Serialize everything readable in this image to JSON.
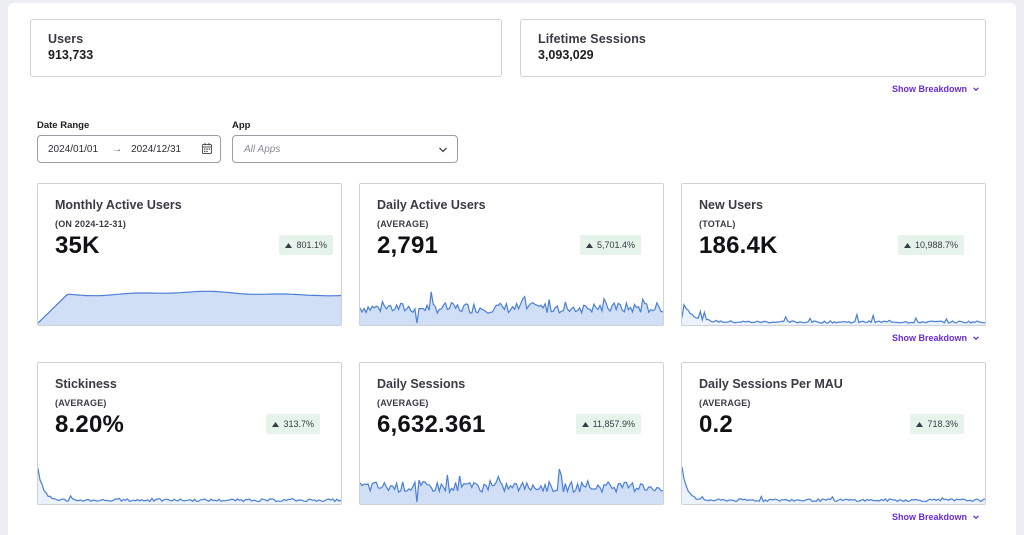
{
  "top_stats": {
    "users": {
      "label": "Users",
      "value": "913,733"
    },
    "lifetime_sessions": {
      "label": "Lifetime Sessions",
      "value": "3,093,029"
    }
  },
  "show_breakdown_label": "Show Breakdown",
  "filters": {
    "date_range": {
      "label": "Date Range",
      "start": "2024/01/01",
      "end": "2024/12/31"
    },
    "app": {
      "label": "App",
      "placeholder": "All Apps"
    }
  },
  "metrics": [
    {
      "title": "Monthly Active Users",
      "subtitle": "(ON 2024-12-31)",
      "value": "35K",
      "change": "801.1%",
      "trend": "mau"
    },
    {
      "title": "Daily Active Users",
      "subtitle": "(AVERAGE)",
      "value": "2,791",
      "change": "5,701.4%",
      "trend": "noisy-mid"
    },
    {
      "title": "New Users",
      "subtitle": "(TOTAL)",
      "value": "186.4K",
      "change": "10,988.7%",
      "trend": "decay"
    },
    {
      "title": "Stickiness",
      "subtitle": "(AVERAGE)",
      "value": "8.20%",
      "change": "313.7%",
      "trend": "spike-low"
    },
    {
      "title": "Daily Sessions",
      "subtitle": "(AVERAGE)",
      "value": "6,632.361",
      "change": "11,857.9%",
      "trend": "noisy-mid"
    },
    {
      "title": "Daily Sessions Per MAU",
      "subtitle": "(AVERAGE)",
      "value": "0.2",
      "change": "718.3%",
      "trend": "spike-low"
    }
  ],
  "colors": {
    "line": "#4a7fd6",
    "fill": "#c9d9f4",
    "accent": "#6a2bd9",
    "badge_bg": "#e5f3ea"
  },
  "icons": {
    "breakdown": "chevron-down-icon",
    "date_arrow": "arrow-right-icon",
    "calendar": "calendar-icon",
    "select": "chevron-down-icon",
    "badge": "triangle-up-icon"
  }
}
